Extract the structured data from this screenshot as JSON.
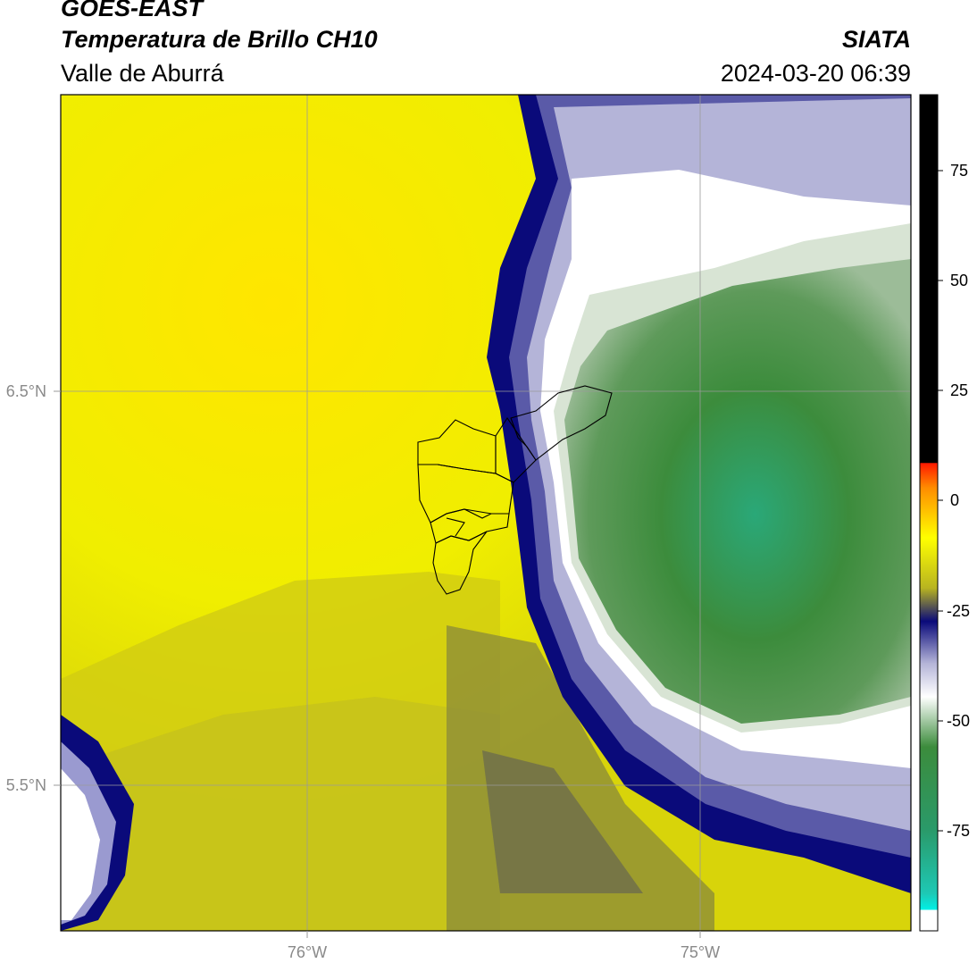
{
  "header": {
    "satellite": "GOES-EAST",
    "product": "Temperatura de Brillo CH10",
    "region": "Valle de Aburrá",
    "brand": "SIATA",
    "timestamp": "2024-03-20 06:39"
  },
  "map": {
    "lon_ticks": [
      "76°W",
      "75°W"
    ],
    "lat_ticks": [
      "6.5°N",
      "5.5°N"
    ]
  },
  "colorbar": {
    "ticks": [
      "75",
      "50",
      "25",
      "0",
      "-25",
      "-50",
      "-75"
    ],
    "colors": {
      "warm_top": "#000000",
      "red": "#ff1a00",
      "orange": "#ff8c00",
      "yellow": "#ffff00",
      "olive": "#b8b420",
      "navy": "#0a0a7a",
      "lavender": "#b4b4d8",
      "white": "#ffffff",
      "green": "#3c8c3c",
      "teal": "#1ec8b4",
      "cyan": "#00f0e6"
    }
  }
}
